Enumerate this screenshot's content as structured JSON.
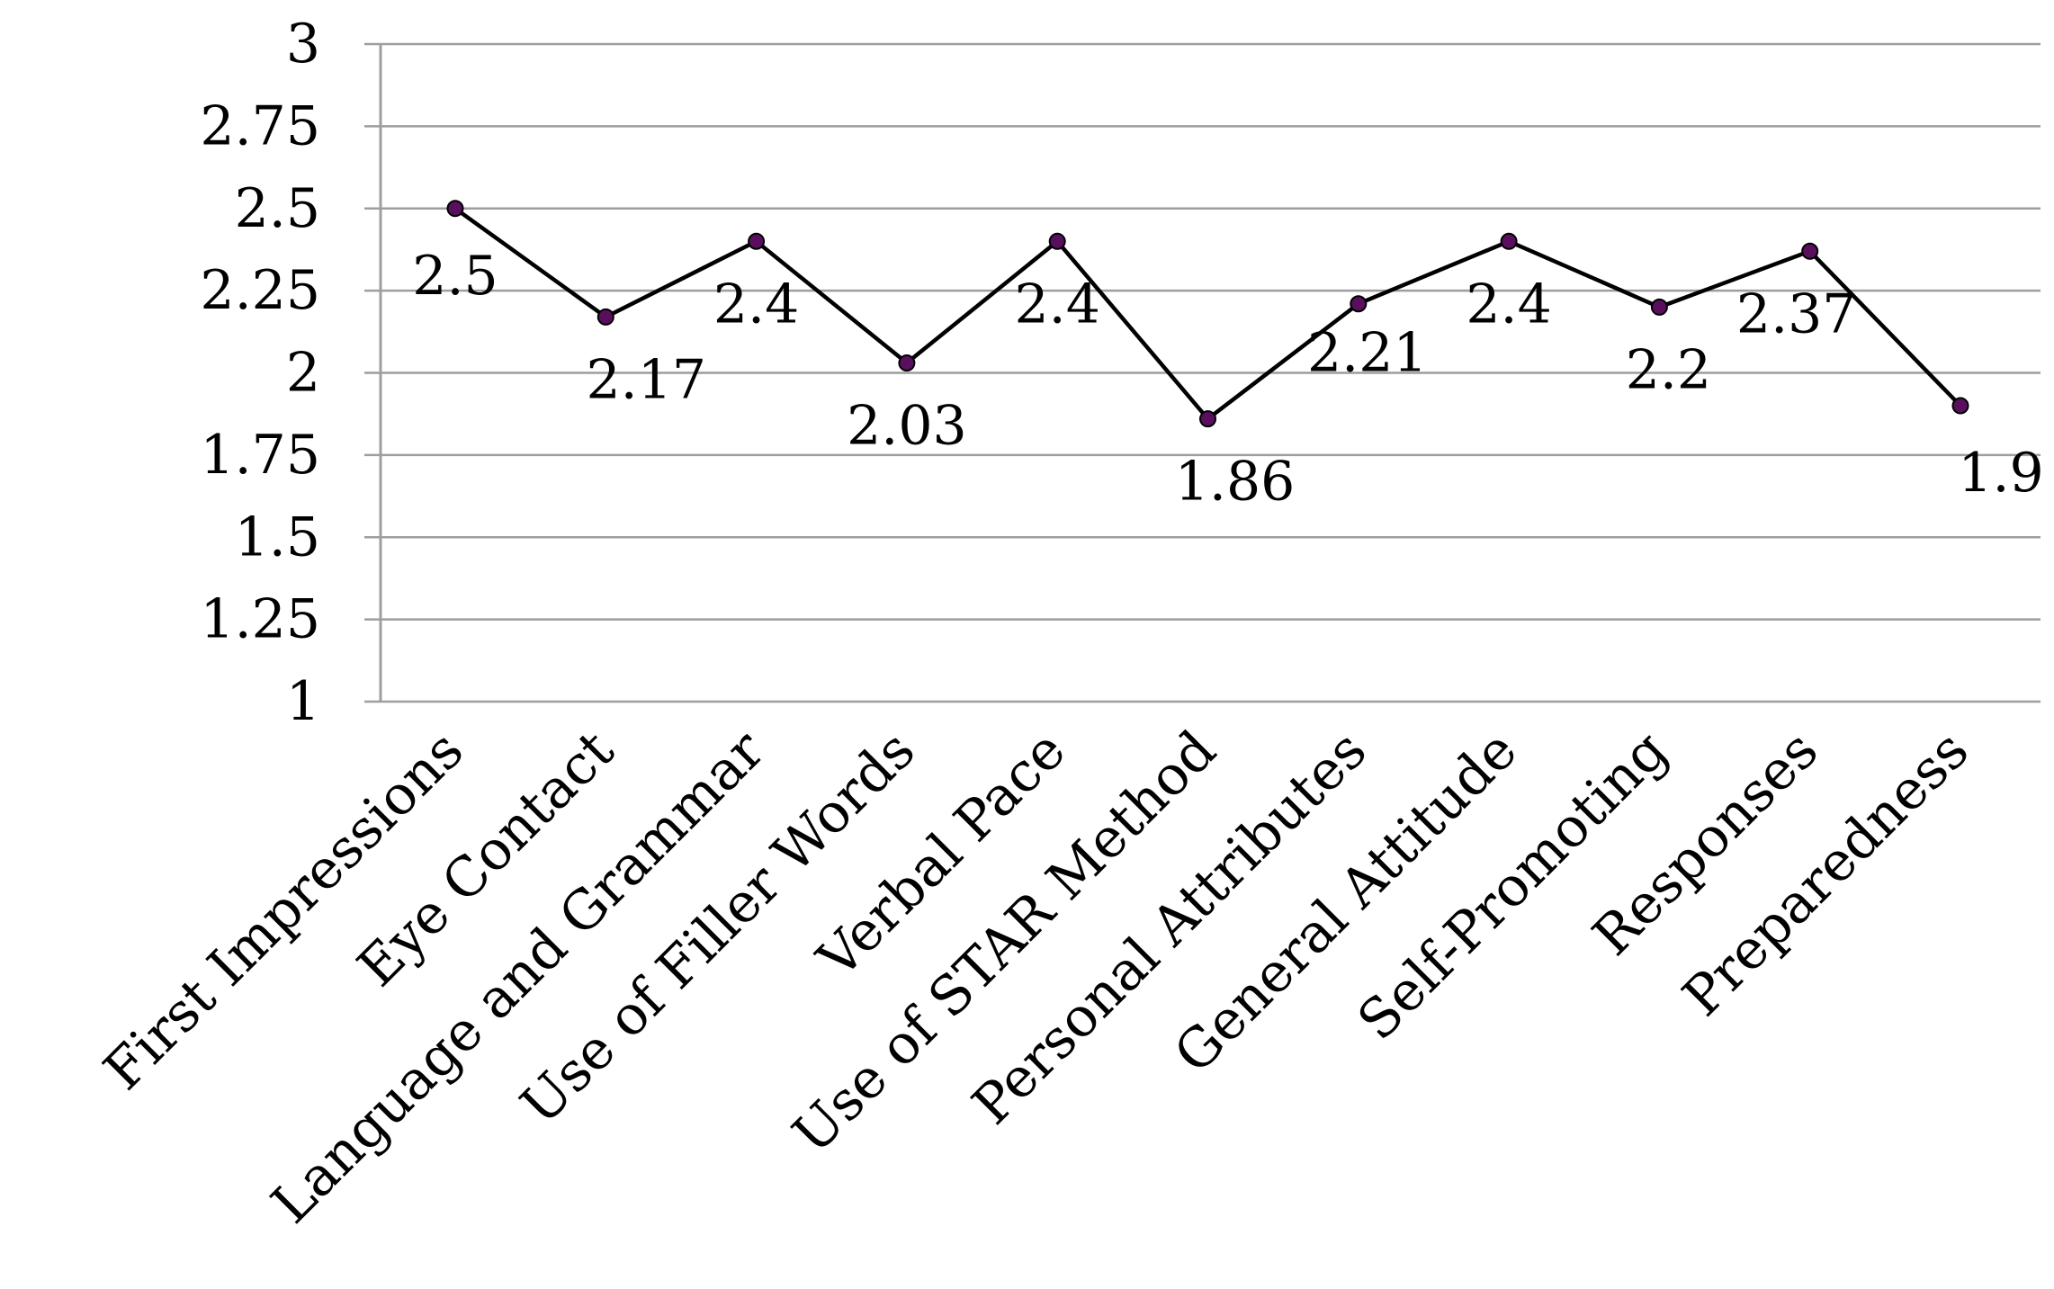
{
  "chart_data": {
    "type": "line",
    "title": "",
    "xlabel": "",
    "ylabel": "",
    "ylim": [
      1,
      3
    ],
    "yticks": [
      "1",
      "1.25",
      "1.5",
      "1.75",
      "2",
      "2.25",
      "2.5",
      "2.75",
      "3"
    ],
    "ytick_values": [
      1,
      1.25,
      1.5,
      1.75,
      2,
      2.25,
      2.5,
      2.75,
      3
    ],
    "grid": true,
    "legend": "none",
    "categories": [
      "First Impressions",
      "Eye Contact",
      "Language and Grammar",
      "Use of Filler Words",
      "Verbal Pace",
      "Use of STAR Method",
      "Personal Attributes",
      "General Attitude",
      "Self-Promoting",
      "Responses",
      "Preparedness"
    ],
    "series": [
      {
        "values": [
          2.5,
          2.17,
          2.4,
          2.03,
          2.4,
          1.86,
          2.21,
          2.4,
          2.2,
          2.37,
          1.9
        ],
        "labels": [
          "2.5",
          "2.17",
          "2.4",
          "2.03",
          "2.4",
          "1.86",
          "2.21",
          "2.4",
          "2.2",
          "2.37",
          "1.9"
        ],
        "line_color": "#000000",
        "marker_color": "#5a0f5e"
      }
    ],
    "gridline_color": "#9e9e9e"
  }
}
